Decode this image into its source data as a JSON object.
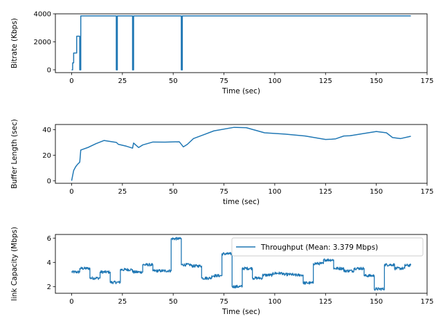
{
  "chart_data": [
    {
      "type": "line",
      "xlabel": "Time (sec)",
      "ylabel": "Bitrate (Kbps)",
      "xlim": [
        -8,
        175
      ],
      "ylim": [
        -200,
        4000
      ],
      "xticks": [
        0,
        25,
        50,
        75,
        100,
        125,
        150,
        175
      ],
      "yticks": [
        0,
        2000,
        4000
      ],
      "grid": false,
      "series": [
        {
          "color": "#1f77b4",
          "step": "post",
          "x": [
            0,
            0.5,
            1,
            2,
            2.5,
            3,
            4,
            4.5,
            5,
            22,
            22.5,
            23,
            30,
            30.5,
            31,
            54,
            54.5,
            55,
            167
          ],
          "y": [
            0,
            500,
            1200,
            1200,
            2400,
            2400,
            0,
            3850,
            3850,
            0,
            3850,
            3850,
            0,
            3850,
            3850,
            0,
            3850,
            3850,
            3850
          ]
        }
      ]
    },
    {
      "type": "line",
      "xlabel": "time (sec)",
      "ylabel": "Buffer Length (sec)",
      "xlim": [
        -8,
        175
      ],
      "ylim": [
        -2,
        44
      ],
      "xticks": [
        0,
        25,
        50,
        75,
        100,
        125,
        150,
        175
      ],
      "yticks": [
        0,
        20,
        40
      ],
      "grid": false,
      "series": [
        {
          "color": "#1f77b4",
          "x": [
            0,
            0.5,
            1,
            2,
            3,
            4,
            4.5,
            8,
            12,
            16,
            20,
            22,
            23,
            27,
            30,
            30.5,
            33,
            35,
            40,
            46,
            53,
            55,
            57,
            60,
            65,
            70,
            80,
            86,
            95,
            105,
            115,
            125,
            128,
            130,
            134,
            137,
            142,
            150,
            155,
            158,
            162,
            167
          ],
          "y": [
            0,
            4,
            8,
            11,
            13,
            14.5,
            24,
            26,
            29,
            31.5,
            30.5,
            30,
            28.5,
            27,
            25.5,
            29.5,
            26,
            28,
            30.3,
            30.2,
            30.5,
            26.5,
            28.5,
            33,
            36,
            39,
            41.8,
            41.5,
            37.5,
            36.5,
            35,
            32.3,
            32.5,
            32.8,
            35,
            35.2,
            36.5,
            38.5,
            37.5,
            33.8,
            33,
            34.8
          ]
        }
      ]
    },
    {
      "type": "line",
      "xlabel": "Time (sec)",
      "ylabel": "link Capacity (Mbps)",
      "xlim": [
        -8,
        175
      ],
      "ylim": [
        1.45,
        6.3
      ],
      "xticks": [
        0,
        25,
        50,
        75,
        100,
        125,
        150,
        175
      ],
      "yticks": [
        2,
        4,
        6
      ],
      "grid": false,
      "legend": "top-right",
      "series": [
        {
          "name": "Throughput (Mean: 3.379 Mbps)",
          "color": "#1f77b4",
          "step": "post",
          "jitter": 0.12,
          "x": [
            0,
            4,
            8,
            9,
            13,
            14,
            18,
            19,
            23,
            24,
            29,
            30,
            34,
            35,
            39,
            40,
            44,
            48,
            49,
            53,
            54,
            58,
            59,
            63,
            64,
            68,
            69,
            73,
            74,
            78,
            79,
            83,
            84,
            88,
            89,
            93,
            94,
            98,
            99,
            103,
            104,
            108,
            109,
            113,
            114,
            118,
            119,
            123,
            124,
            128,
            129,
            133,
            134,
            138,
            139,
            143,
            144,
            148,
            149,
            153,
            154,
            158,
            159,
            163,
            164,
            167
          ],
          "y": [
            3.2,
            3.5,
            3.5,
            2.7,
            2.7,
            3.2,
            3.2,
            2.35,
            2.35,
            3.4,
            3.4,
            3.2,
            3.2,
            3.8,
            3.8,
            3.3,
            3.3,
            3.3,
            5.95,
            5.95,
            3.8,
            3.8,
            3.7,
            3.7,
            2.7,
            2.7,
            2.9,
            2.9,
            4.7,
            4.7,
            2.0,
            2.0,
            3.5,
            3.5,
            2.7,
            2.7,
            2.95,
            2.95,
            3.1,
            3.1,
            3.0,
            3.0,
            2.95,
            2.95,
            2.3,
            2.3,
            3.9,
            3.9,
            4.2,
            4.2,
            3.5,
            3.5,
            3.3,
            3.3,
            3.5,
            3.5,
            2.9,
            2.9,
            1.8,
            1.8,
            3.8,
            3.8,
            3.5,
            3.5,
            3.75,
            3.75
          ]
        }
      ]
    }
  ]
}
